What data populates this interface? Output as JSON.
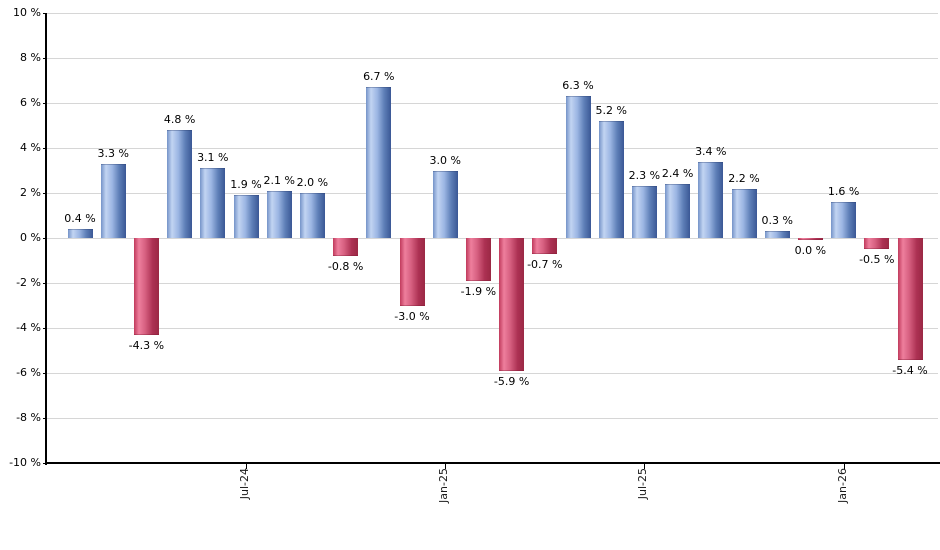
{
  "chart_data": {
    "type": "bar",
    "title": "",
    "xlabel": "",
    "ylabel": "",
    "ylim": [
      -10,
      10
    ],
    "y_tick_step": 2,
    "grid": true,
    "legend": "none",
    "y_ticks": [
      "10 %",
      "8 %",
      "6 %",
      "4 %",
      "2 %",
      "0 %",
      "-2 %",
      "-4 %",
      "-6 %",
      "-8 %",
      "-10 %"
    ],
    "x_ticks": [
      {
        "label": "Jul-24",
        "bar_index": 5
      },
      {
        "label": "Jan-25",
        "bar_index": 11
      },
      {
        "label": "Jul-25",
        "bar_index": 17
      },
      {
        "label": "Jan-26",
        "bar_index": 23
      }
    ],
    "bars": [
      {
        "value": 0.4,
        "label": "0.4 %"
      },
      {
        "value": 3.3,
        "label": "3.3 %"
      },
      {
        "value": -4.3,
        "label": "-4.3 %"
      },
      {
        "value": 4.8,
        "label": "4.8 %"
      },
      {
        "value": 3.1,
        "label": "3.1 %"
      },
      {
        "value": 1.9,
        "label": "1.9 %"
      },
      {
        "value": 2.1,
        "label": "2.1 %"
      },
      {
        "value": 2.0,
        "label": "2.0 %"
      },
      {
        "value": -0.8,
        "label": "-0.8 %"
      },
      {
        "value": 6.7,
        "label": "6.7 %"
      },
      {
        "value": -3.0,
        "label": "-3.0 %"
      },
      {
        "value": 3.0,
        "label": "3.0 %"
      },
      {
        "value": -1.9,
        "label": "-1.9 %"
      },
      {
        "value": -5.9,
        "label": "-5.9 %"
      },
      {
        "value": -0.7,
        "label": "-0.7 %"
      },
      {
        "value": 6.3,
        "label": "6.3 %"
      },
      {
        "value": 5.2,
        "label": "5.2 %"
      },
      {
        "value": 2.3,
        "label": "2.3 %"
      },
      {
        "value": 2.4,
        "label": "2.4 %"
      },
      {
        "value": 3.4,
        "label": "3.4 %"
      },
      {
        "value": 2.2,
        "label": "2.2 %"
      },
      {
        "value": 0.3,
        "label": "0.3 %"
      },
      {
        "value": 0.0,
        "label": "0.0 %"
      },
      {
        "value": 1.6,
        "label": "1.6 %"
      },
      {
        "value": -0.5,
        "label": "-0.5 %"
      },
      {
        "value": -5.4,
        "label": "-5.4 %"
      }
    ],
    "colors": {
      "positive_bar": "#6f92c9",
      "negative_bar": "#c84a68",
      "grid_line": "#d6d6d6",
      "axis_line": "#000000",
      "label_text": "#000000",
      "background": "#ffffff"
    }
  }
}
